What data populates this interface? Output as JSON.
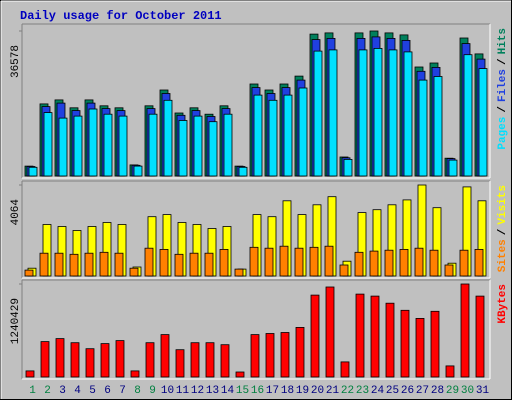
{
  "chart_data": [
    {
      "type": "bar",
      "title": "Daily usage for October 2011",
      "ylim": [
        0,
        36578
      ],
      "yticks": [
        36578
      ],
      "legend_separator": "/",
      "series": [
        {
          "name": "Hits",
          "color": "#00805c",
          "values": [
            2500,
            18200,
            19200,
            17200,
            19200,
            17700,
            17200,
            2800,
            17700,
            21700,
            15900,
            17200,
            15600,
            17700,
            2500,
            23200,
            21700,
            23200,
            25200,
            35800,
            36100,
            4800,
            36100,
            36578,
            36100,
            35600,
            27500,
            28500,
            4500,
            34800,
            30800
          ]
        },
        {
          "name": "Files",
          "color": "#2040e0",
          "values": [
            2400,
            17500,
            18400,
            16500,
            18400,
            17000,
            16500,
            2700,
            17000,
            20800,
            15300,
            16500,
            15000,
            17000,
            2400,
            22300,
            20800,
            22300,
            24200,
            34400,
            34700,
            4600,
            34700,
            35100,
            34700,
            34200,
            26400,
            27400,
            4400,
            33400,
            29500
          ]
        },
        {
          "name": "Pages",
          "color": "#00e0ff",
          "values": [
            2200,
            16000,
            14600,
            15100,
            16900,
            15600,
            15100,
            2500,
            15600,
            19100,
            14000,
            15100,
            13700,
            15600,
            2200,
            20400,
            19100,
            20400,
            22200,
            31500,
            31800,
            4200,
            31800,
            32200,
            31800,
            31300,
            24200,
            25100,
            4000,
            30600,
            27100
          ]
        }
      ]
    },
    {
      "type": "bar",
      "ylim": [
        0,
        4064
      ],
      "yticks": [
        4064
      ],
      "legend_separator": "/",
      "series": [
        {
          "name": "Visits",
          "color": "#ffff00",
          "values": [
            350,
            2300,
            2210,
            2030,
            2210,
            2390,
            2300,
            400,
            2650,
            2740,
            2390,
            2300,
            2120,
            2210,
            310,
            2740,
            2650,
            3360,
            2740,
            3180,
            3540,
            660,
            2830,
            2960,
            3180,
            3400,
            4064,
            3050,
            570,
            3980,
            3360
          ]
        },
        {
          "name": "Sites",
          "color": "#ff8000",
          "values": [
            265,
            1020,
            1020,
            970,
            1020,
            1060,
            1020,
            350,
            1240,
            1190,
            970,
            1020,
            1020,
            1190,
            310,
            1280,
            1240,
            1330,
            1240,
            1280,
            1330,
            490,
            1060,
            1110,
            1150,
            1190,
            1240,
            1150,
            490,
            1150,
            1190
          ]
        }
      ]
    },
    {
      "type": "bar",
      "ylim": [
        0,
        1240429
      ],
      "yticks": [
        1240429
      ],
      "categories": [
        "1",
        "2",
        "3",
        "4",
        "5",
        "6",
        "7",
        "8",
        "9",
        "10",
        "11",
        "12",
        "13",
        "14",
        "15",
        "16",
        "17",
        "18",
        "19",
        "20",
        "21",
        "22",
        "23",
        "24",
        "25",
        "26",
        "27",
        "28",
        "29",
        "30",
        "31"
      ],
      "category_colors": [
        "#008040",
        "#008040",
        "#000080",
        "#000080",
        "#000080",
        "#000080",
        "#000080",
        "#008040",
        "#008040",
        "#000080",
        "#000080",
        "#000080",
        "#000080",
        "#000080",
        "#008040",
        "#008040",
        "#000080",
        "#000080",
        "#000080",
        "#000080",
        "#000080",
        "#008040",
        "#008040",
        "#000080",
        "#000080",
        "#000080",
        "#000080",
        "#000080",
        "#008040",
        "#008040",
        "#000080"
      ],
      "series": [
        {
          "name": "KBytes",
          "color": "#ff0000",
          "values": [
            81000,
            472000,
            512000,
            458000,
            378000,
            445000,
            485000,
            81000,
            458000,
            566000,
            364000,
            458000,
            458000,
            431000,
            67000,
            566000,
            580000,
            593000,
            661000,
            1092000,
            1200000,
            202000,
            1106000,
            1079000,
            984000,
            890000,
            782000,
            876000,
            148000,
            1240429,
            1079000
          ]
        }
      ]
    }
  ]
}
